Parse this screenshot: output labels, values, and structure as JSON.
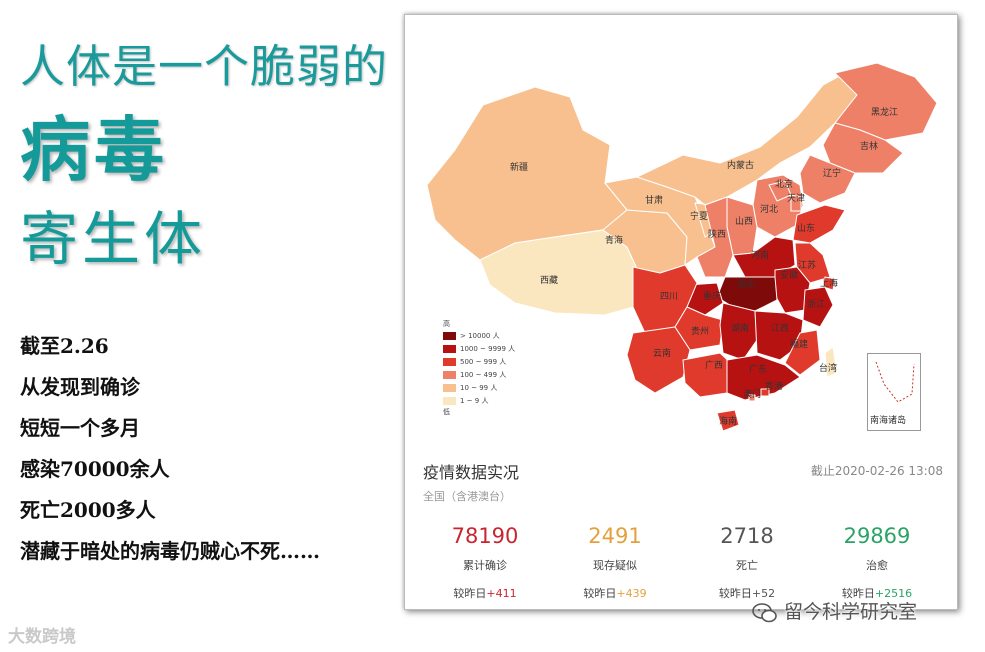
{
  "heading": {
    "line1": "人体是一个脆弱的",
    "line2": "病毒",
    "line3": "寄生体"
  },
  "body_lines": [
    "截至2.26",
    "从发现到确诊",
    "短短一个多月",
    "感染70000余人",
    "死亡2000多人",
    "潜藏于暗处的病毒仍贼心不死……"
  ],
  "map": {
    "provinces": {
      "xinjiang": "新疆",
      "xizang": "西藏",
      "qinghai": "青海",
      "gansu": "甘肃",
      "neimenggu": "内蒙古",
      "heilongjiang": "黑龙江",
      "jilin": "吉林",
      "liaoning": "辽宁",
      "beijing": "北京",
      "tianjin": "天津",
      "hebei": "河北",
      "shanxi": "山西",
      "ningxia": "宁夏",
      "shaanxi": "陕西",
      "shandong": "山东",
      "henan": "河南",
      "jiangsu": "江苏",
      "anhui": "安徽",
      "shanghai": "上海",
      "hubei": "湖北",
      "zhejiang": "浙江",
      "sichuan": "四川",
      "chongqing": "重庆",
      "guizhou": "贵州",
      "hunan": "湖南",
      "jiangxi": "江西",
      "fujian": "福建",
      "yunnan": "云南",
      "guangxi": "广西",
      "guangdong": "广东",
      "taiwan": "台湾",
      "xianggang": "香港",
      "aomen": "澳门",
      "hainan": "海南"
    },
    "inset_label": "南海诸岛",
    "legend": {
      "top_label": "高",
      "bottom_label": "低",
      "items": [
        {
          "label": "> 10000 人",
          "color": "#7f0a0a"
        },
        {
          "label": "1000 ~ 9999 人",
          "color": "#b71212"
        },
        {
          "label": "500 ~ 999 人",
          "color": "#e03a2c"
        },
        {
          "label": "100 ~ 499 人",
          "color": "#ef8068"
        },
        {
          "label": "10 ~ 99 人",
          "color": "#f7c08e"
        },
        {
          "label": "1 ~ 9 人",
          "color": "#fbe7bf"
        }
      ]
    }
  },
  "stats": {
    "title": "疫情数据实况",
    "timestamp": "截止2020-02-26 13:08",
    "scope": "全国（含港澳台）",
    "delta_prefix": "较昨日",
    "items": [
      {
        "value": "78190",
        "label": "累计确诊",
        "delta": "+411",
        "color": "#c7262f"
      },
      {
        "value": "2491",
        "label": "现存疑似",
        "delta": "+439",
        "color": "#e4a03c"
      },
      {
        "value": "2718",
        "label": "死亡",
        "delta": "+52",
        "color": "#555555"
      },
      {
        "value": "29869",
        "label": "治愈",
        "delta": "+2516",
        "color": "#2aa366"
      }
    ]
  },
  "watermarks": {
    "left": "大数跨境",
    "right": "留今科学研究室"
  }
}
